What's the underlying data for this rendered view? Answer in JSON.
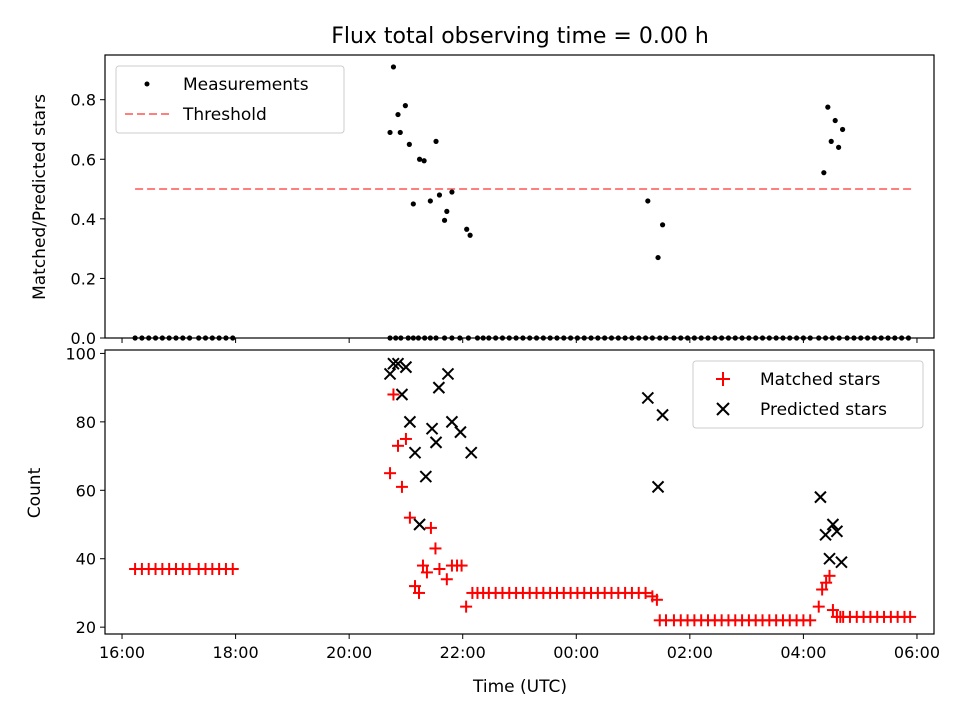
{
  "title": "Flux total observing time = 0.00 h",
  "colors": {
    "threshold": "#ff7f7f",
    "matched": "#ff0000",
    "measure": "#000000",
    "predicted": "#000000"
  },
  "chart_data": [
    {
      "type": "scatter",
      "ylabel": "Matched/Predicted stars",
      "ylim": [
        0,
        0.95
      ],
      "xlim": [
        15.7,
        30.3
      ],
      "yticks": [
        0.0,
        0.2,
        0.4,
        0.6,
        0.8
      ],
      "ytick_labels": [
        "0.0",
        "0.2",
        "0.4",
        "0.6",
        "0.8"
      ],
      "legend": {
        "placement": "upper-left",
        "entries": [
          "Measurements",
          "Threshold"
        ]
      },
      "threshold": {
        "value": 0.5,
        "x": [
          16.23,
          29.9
        ]
      },
      "measurements": {
        "x": [
          16.23,
          16.35,
          16.47,
          16.59,
          16.71,
          16.83,
          16.95,
          17.07,
          17.19,
          17.35,
          17.47,
          17.59,
          17.71,
          17.83,
          17.95,
          20.72,
          20.82,
          20.91,
          21.04,
          21.13,
          21.22,
          21.33,
          21.43,
          21.53,
          21.68,
          21.81,
          21.95,
          22.1,
          22.26,
          22.36,
          22.46,
          22.58,
          22.7,
          22.82,
          22.94,
          23.06,
          23.18,
          23.3,
          23.42,
          23.54,
          23.66,
          23.78,
          23.9,
          24.02,
          24.14,
          24.26,
          24.38,
          24.5,
          24.62,
          24.74,
          24.86,
          24.98,
          25.1,
          25.22,
          25.34,
          25.47,
          25.58,
          25.72,
          25.84,
          25.96,
          26.08,
          26.2,
          26.32,
          26.44,
          26.56,
          26.68,
          26.8,
          26.92,
          27.04,
          27.16,
          27.28,
          27.4,
          27.52,
          27.64,
          27.76,
          27.88,
          28.0,
          28.12,
          28.27,
          28.39,
          28.51,
          28.63,
          28.77,
          28.89,
          29.01,
          29.13,
          29.25,
          29.37,
          29.49,
          29.61,
          29.73,
          29.85,
          20.72,
          20.78,
          20.86,
          20.9,
          20.99,
          21.06,
          21.13,
          21.24,
          21.32,
          21.43,
          21.53,
          21.59,
          21.68,
          21.72,
          21.81,
          22.07,
          22.13,
          25.26,
          25.44,
          25.52,
          28.36,
          28.43,
          28.49,
          28.56,
          28.62,
          28.69
        ],
        "y": [
          0,
          0,
          0,
          0,
          0,
          0,
          0,
          0,
          0,
          0,
          0,
          0,
          0,
          0,
          0,
          0,
          0,
          0,
          0,
          0,
          0,
          0,
          0,
          0,
          0,
          0,
          0,
          0,
          0,
          0,
          0,
          0,
          0,
          0,
          0,
          0,
          0,
          0,
          0,
          0,
          0,
          0,
          0,
          0,
          0,
          0,
          0,
          0,
          0,
          0,
          0,
          0,
          0,
          0,
          0,
          0,
          0,
          0,
          0,
          0,
          0,
          0,
          0,
          0,
          0,
          0,
          0,
          0,
          0,
          0,
          0,
          0,
          0,
          0,
          0,
          0,
          0,
          0,
          0,
          0,
          0,
          0,
          0,
          0,
          0,
          0,
          0,
          0,
          0,
          0,
          0,
          0,
          0.69,
          0.91,
          0.75,
          0.69,
          0.78,
          0.65,
          0.45,
          0.6,
          0.595,
          0.46,
          0.66,
          0.48,
          0.395,
          0.425,
          0.49,
          0.365,
          0.345,
          0.46,
          0.27,
          0.38,
          0.555,
          0.775,
          0.66,
          0.73,
          0.64,
          0.7
        ]
      }
    },
    {
      "type": "scatter",
      "ylabel": "Count",
      "xlabel": "Time (UTC)",
      "ylim": [
        18,
        101
      ],
      "xlim": [
        15.7,
        30.3
      ],
      "yticks": [
        20,
        40,
        60,
        80,
        100
      ],
      "ytick_labels": [
        "20",
        "40",
        "60",
        "80",
        "100"
      ],
      "xticks": [
        16,
        18,
        20,
        22,
        24,
        26,
        28,
        30
      ],
      "xtick_labels": [
        "16:00",
        "18:00",
        "20:00",
        "22:00",
        "00:00",
        "02:00",
        "04:00",
        "06:00"
      ],
      "legend": {
        "placement": "upper-right",
        "entries": [
          "Matched stars",
          "Predicted stars"
        ]
      },
      "matched": {
        "x": [
          16.23,
          16.35,
          16.47,
          16.59,
          16.71,
          16.83,
          16.95,
          17.07,
          17.19,
          17.35,
          17.47,
          17.59,
          17.71,
          17.83,
          17.95,
          20.72,
          20.78,
          20.86,
          20.93,
          21.0,
          21.07,
          21.16,
          21.23,
          21.3,
          21.37,
          21.44,
          21.52,
          21.59,
          21.72,
          21.81,
          21.9,
          21.98,
          22.06,
          22.17,
          22.26,
          22.36,
          22.46,
          22.58,
          22.7,
          22.82,
          22.94,
          23.06,
          23.18,
          23.3,
          23.42,
          23.54,
          23.66,
          23.78,
          23.9,
          24.02,
          24.14,
          24.26,
          24.38,
          24.5,
          24.62,
          24.74,
          24.86,
          24.98,
          25.1,
          25.22,
          25.34,
          25.42,
          25.47,
          25.58,
          25.72,
          25.84,
          25.96,
          26.08,
          26.2,
          26.32,
          26.44,
          26.56,
          26.68,
          26.8,
          26.92,
          27.04,
          27.16,
          27.28,
          27.4,
          27.52,
          27.64,
          27.76,
          27.88,
          28.0,
          28.12,
          28.27,
          28.33,
          28.4,
          28.46,
          28.52,
          28.59,
          28.65,
          28.7,
          28.82,
          28.94,
          29.06,
          29.18,
          29.3,
          29.42,
          29.54,
          29.66,
          29.78,
          29.88
        ],
        "y": [
          37,
          37,
          37,
          37,
          37,
          37,
          37,
          37,
          37,
          37,
          37,
          37,
          37,
          37,
          37,
          65,
          88,
          73,
          61,
          75,
          52,
          32,
          30,
          38,
          36,
          49,
          43,
          37,
          34,
          38,
          38,
          38,
          26,
          30,
          30,
          30,
          30,
          30,
          30,
          30,
          30,
          30,
          30,
          30,
          30,
          30,
          30,
          30,
          30,
          30,
          30,
          30,
          30,
          30,
          30,
          30,
          30,
          30,
          30,
          30,
          29,
          28,
          22,
          22,
          22,
          22,
          22,
          22,
          22,
          22,
          22,
          22,
          22,
          22,
          22,
          22,
          22,
          22,
          22,
          22,
          22,
          22,
          22,
          22,
          22,
          26,
          31,
          33,
          35,
          25,
          23,
          23,
          23,
          23,
          23,
          23,
          23,
          23,
          23,
          23,
          23,
          23,
          23
        ]
      },
      "predicted": {
        "x": [
          20.72,
          20.78,
          20.86,
          20.93,
          21.0,
          21.07,
          21.16,
          21.24,
          21.35,
          21.46,
          21.53,
          21.58,
          21.74,
          21.81,
          21.96,
          22.15,
          25.26,
          25.44,
          25.52,
          28.3,
          28.39,
          28.46,
          28.52,
          28.59,
          28.67
        ],
        "y": [
          94,
          97,
          97,
          88,
          96,
          80,
          71,
          50,
          64,
          78,
          74,
          90,
          94,
          80,
          77,
          71,
          87,
          61,
          82,
          58,
          47,
          40,
          50,
          48,
          39
        ]
      }
    }
  ]
}
